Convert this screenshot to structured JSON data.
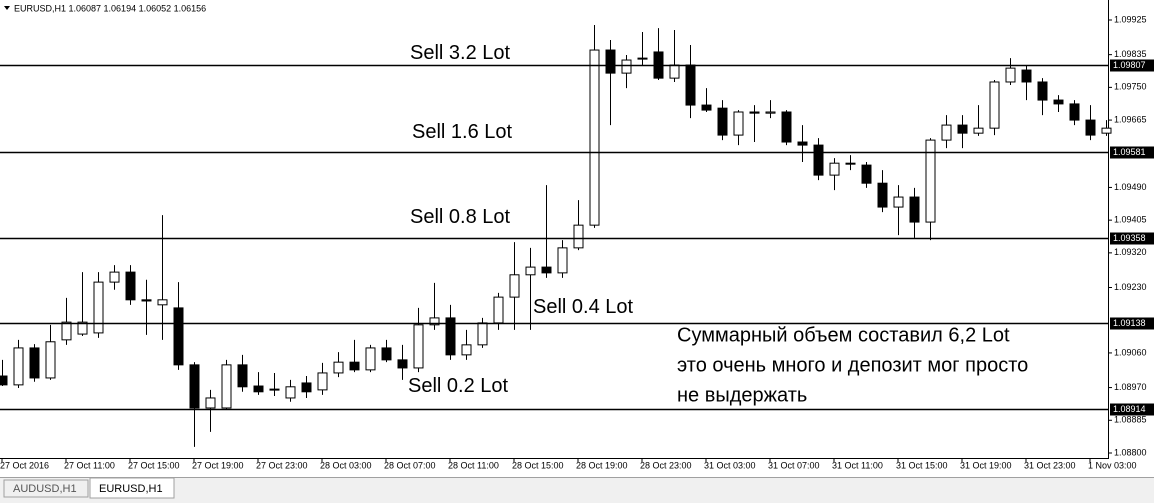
{
  "chart_data": {
    "type": "candlestick",
    "title": "EURUSD,H1  1.06087 1.06194 1.06052 1.06156",
    "categories": [
      "27 Oct 2016",
      null,
      null,
      null,
      "27 Oct 11:00",
      null,
      null,
      null,
      "27 Oct 15:00",
      null,
      null,
      null,
      "27 Oct 19:00",
      null,
      null,
      null,
      "27 Oct 23:00",
      null,
      null,
      null,
      "28 Oct 03:00",
      null,
      null,
      null,
      "28 Oct 07:00",
      null,
      null,
      null,
      "28 Oct 11:00",
      null,
      null,
      null,
      "28 Oct 15:00",
      null,
      null,
      null,
      "28 Oct 19:00",
      null,
      null,
      null,
      "28 Oct 23:00",
      null,
      null,
      null,
      "31 Oct 03:00",
      null,
      null,
      null,
      "31 Oct 07:00",
      null,
      null,
      null,
      "31 Oct 11:00",
      null,
      null,
      null,
      "31 Oct 15:00",
      null,
      null,
      null,
      "31 Oct 19:00",
      null,
      null,
      null,
      "31 Oct 23:00",
      null,
      null,
      null,
      "1 Nov 03:00",
      null
    ],
    "open": [
      1.09,
      1.08977,
      1.09073,
      1.08995,
      1.09094,
      1.09109,
      1.09112,
      1.09244,
      1.0927,
      1.09198,
      1.09185,
      1.09177,
      1.09029,
      1.08917,
      1.08917,
      1.09029,
      1.08974,
      1.08966,
      1.08943,
      1.08982,
      1.08964,
      1.09008,
      1.09036,
      1.09016,
      1.09073,
      1.09042,
      1.09021,
      1.09133,
      1.09151,
      1.09055,
      1.09081,
      1.09138,
      1.09205,
      1.09263,
      1.09283,
      1.09268,
      1.09333,
      1.09392,
      1.09847,
      1.09787,
      1.09826,
      1.09842,
      1.09774,
      1.09808,
      1.09704,
      1.09696,
      1.09626,
      1.09686,
      1.09683,
      1.09686,
      1.09608,
      1.096,
      1.09522,
      1.09553,
      1.09548,
      1.09501,
      1.09439,
      1.09465,
      1.094,
      1.09613,
      1.09652,
      1.09631,
      1.09644,
      1.09764,
      1.09795,
      1.09764,
      1.09717,
      1.09707,
      1.09665,
      1.09631
    ],
    "high": [
      1.09042,
      1.09094,
      1.09083,
      1.09133,
      1.09203,
      1.0927,
      1.0927,
      1.09288,
      1.09288,
      1.0925,
      1.09418,
      1.09244,
      1.09036,
      1.08964,
      1.09042,
      1.09055,
      1.0901,
      1.09008,
      1.0899,
      1.09,
      1.09034,
      1.09062,
      1.09094,
      1.09081,
      1.09094,
      1.09081,
      1.09177,
      1.09242,
      1.09185,
      1.0912,
      1.09151,
      1.09216,
      1.09348,
      1.09333,
      1.09496,
      1.09353,
      1.09457,
      1.09912,
      1.09873,
      1.09834,
      1.09894,
      1.09904,
      1.09899,
      1.0986,
      1.09748,
      1.09717,
      1.09691,
      1.09704,
      1.09717,
      1.09691,
      1.09652,
      1.09618,
      1.09566,
      1.09574,
      1.09556,
      1.09535,
      1.09496,
      1.09489,
      1.09618,
      1.09678,
      1.09678,
      1.09704,
      1.09769,
      1.09826,
      1.09808,
      1.09774,
      1.0973,
      1.09717,
      1.09704,
      1.09665
    ],
    "low": [
      1.08974,
      1.08969,
      1.08985,
      1.0899,
      1.09081,
      1.09104,
      1.09099,
      1.09224,
      1.09185,
      1.09107,
      1.09094,
      1.09016,
      1.08816,
      1.08855,
      1.08912,
      1.08959,
      1.08951,
      1.08948,
      1.08933,
      1.08943,
      1.08951,
      1.08997,
      1.0901,
      1.0901,
      1.09036,
      1.0899,
      1.0901,
      1.0912,
      1.09042,
      1.09042,
      1.09073,
      1.0912,
      1.0912,
      1.0912,
      1.09255,
      1.09255,
      1.09327,
      1.09385,
      1.09652,
      1.09748,
      1.09808,
      1.09769,
      1.09764,
      1.0967,
      1.09686,
      1.09613,
      1.096,
      1.09608,
      1.0967,
      1.096,
      1.09556,
      1.09509,
      1.09483,
      1.09535,
      1.09489,
      1.09426,
      1.09366,
      1.09359,
      1.09353,
      1.09592,
      1.09592,
      1.09624,
      1.09626,
      1.09756,
      1.09717,
      1.09678,
      1.09686,
      1.09652,
      1.09613,
      1.09624
    ],
    "close": [
      1.08977,
      1.09073,
      1.08995,
      1.09089,
      1.0914,
      1.0914,
      1.09244,
      1.0927,
      1.09198,
      1.09195,
      1.09198,
      1.09029,
      1.08917,
      1.08943,
      1.09029,
      1.08972,
      1.08959,
      1.08964,
      1.08972,
      1.08959,
      1.09008,
      1.09036,
      1.09016,
      1.09073,
      1.09042,
      1.09021,
      1.09133,
      1.09151,
      1.09055,
      1.09081,
      1.09138,
      1.09205,
      1.09263,
      1.09283,
      1.09268,
      1.09333,
      1.09392,
      1.09847,
      1.09787,
      1.09821,
      1.09824,
      1.09774,
      1.09808,
      1.09704,
      1.09691,
      1.09626,
      1.09686,
      1.09683,
      1.09686,
      1.09608,
      1.096,
      1.09522,
      1.09553,
      1.09551,
      1.09501,
      1.09439,
      1.09465,
      1.094,
      1.09613,
      1.09652,
      1.09631,
      1.09644,
      1.09764,
      1.098,
      1.09764,
      1.09717,
      1.09707,
      1.09665,
      1.09626,
      1.09644
    ],
    "ylim": [
      1.08787,
      1.09977
    ],
    "yticks": [
      1.09925,
      1.09835,
      {
        "value": 1.0975,
        "label": "1.09750"
      },
      1.09665,
      {
        "value": 1.0949,
        "label": "1.09490"
      },
      1.09405,
      {
        "value": 1.0932,
        "label": "1.09320"
      },
      {
        "value": 1.0923,
        "label": "1.09230"
      },
      {
        "value": 1.0906,
        "label": "1.09060"
      },
      {
        "value": 1.0897,
        "label": "1.08970"
      },
      1.08885,
      {
        "value": 1.088,
        "label": "1.08800"
      }
    ],
    "hlines": [
      {
        "price": 1.09807,
        "text": "Sell 3.2 Lot"
      },
      {
        "price": 1.09581,
        "text": "Sell 1.6 Lot"
      },
      {
        "price": 1.09358,
        "text": "Sell 0.8 Lot"
      },
      {
        "price": 1.09138,
        "text": "Sell 0.4 Lot"
      },
      {
        "price": 1.08914,
        "text": "Sell 0.2 Lot"
      }
    ],
    "annotation": [
      "Суммарный объем составил 6,2 Lot",
      "это очень много и депозит мог просто",
      "не выдержать"
    ]
  },
  "tabs": [
    "AUDUSD,H1",
    "EURUSD,H1"
  ]
}
